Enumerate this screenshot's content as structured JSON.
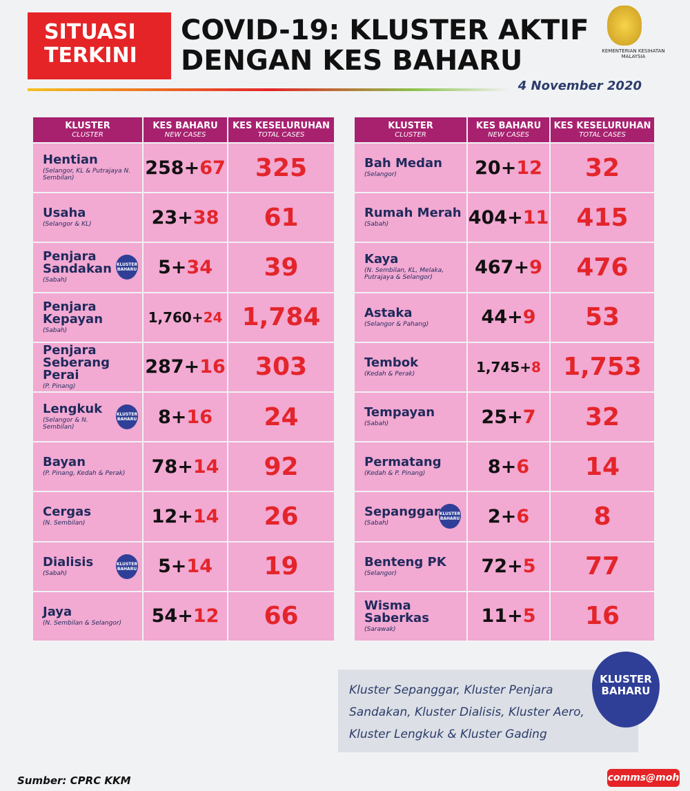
{
  "header": {
    "badge_top": "SITUASI",
    "badge_bottom": "TERKINI",
    "title_line1": "COVID-19: KLUSTER AKTIF",
    "title_line2": "DENGAN KES BAHARU",
    "ministry": "KEMENTERIAN KESIHATAN MALAYSIA",
    "date": "4 November 2020"
  },
  "columns": {
    "cluster": "KLUSTER",
    "cluster_en": "CLUSTER",
    "new": "KES BAHARU",
    "new_en": "NEW CASES",
    "total": "KES KESELURUHAN",
    "total_en": "TOTAL CASES"
  },
  "plus": "+",
  "badge_label": "KLUSTER BAHARU",
  "tables": [
    {
      "rows": [
        {
          "name": "Hentian",
          "location": "(Selangor, KL & Putrajaya N. Sembilan)",
          "existing": "258",
          "new": "67",
          "total": "325",
          "new_cluster": false
        },
        {
          "name": "Usaha",
          "location": "(Selangor & KL)",
          "existing": "23",
          "new": "38",
          "total": "61",
          "new_cluster": false
        },
        {
          "name": "Penjara Sandakan",
          "location": "(Sabah)",
          "existing": "5",
          "new": "34",
          "total": "39",
          "new_cluster": true
        },
        {
          "name": "Penjara Kepayan",
          "location": "(Sabah)",
          "existing": "1,760",
          "new": "24",
          "total": "1,784",
          "new_cluster": false
        },
        {
          "name": "Penjara Seberang Perai",
          "location": "(P. Pinang)",
          "existing": "287",
          "new": "16",
          "total": "303",
          "new_cluster": false
        },
        {
          "name": "Lengkuk",
          "location": "(Selangor & N. Sembilan)",
          "existing": "8",
          "new": "16",
          "total": "24",
          "new_cluster": true
        },
        {
          "name": "Bayan",
          "location": "(P. Pinang, Kedah & Perak)",
          "existing": "78",
          "new": "14",
          "total": "92",
          "new_cluster": false
        },
        {
          "name": "Cergas",
          "location": "(N. Sembilan)",
          "existing": "12",
          "new": "14",
          "total": "26",
          "new_cluster": false
        },
        {
          "name": "Dialisis",
          "location": "(Sabah)",
          "existing": "5",
          "new": "14",
          "total": "19",
          "new_cluster": true
        },
        {
          "name": "Jaya",
          "location": "(N. Sembilan & Selangor)",
          "existing": "54",
          "new": "12",
          "total": "66",
          "new_cluster": false
        }
      ]
    },
    {
      "rows": [
        {
          "name": "Bah Medan",
          "location": "(Selangor)",
          "existing": "20",
          "new": "12",
          "total": "32",
          "new_cluster": false
        },
        {
          "name": "Rumah Merah",
          "location": "(Sabah)",
          "existing": "404",
          "new": "11",
          "total": "415",
          "new_cluster": false
        },
        {
          "name": "Kaya",
          "location": "(N. Sembilan, KL, Melaka, Putrajaya & Selangor)",
          "existing": "467",
          "new": "9",
          "total": "476",
          "new_cluster": false
        },
        {
          "name": "Astaka",
          "location": "(Selangor & Pahang)",
          "existing": "44",
          "new": "9",
          "total": "53",
          "new_cluster": false
        },
        {
          "name": "Tembok",
          "location": "(Kedah & Perak)",
          "existing": "1,745",
          "new": "8",
          "total": "1,753",
          "new_cluster": false
        },
        {
          "name": "Tempayan",
          "location": "(Sabah)",
          "existing": "25",
          "new": "7",
          "total": "32",
          "new_cluster": false
        },
        {
          "name": "Permatang",
          "location": "(Kedah & P. Pinang)",
          "existing": "8",
          "new": "6",
          "total": "14",
          "new_cluster": false
        },
        {
          "name": "Sepanggar",
          "location": "(Sabah)",
          "existing": "2",
          "new": "6",
          "total": "8",
          "new_cluster": true
        },
        {
          "name": "Benteng PK",
          "location": "(Selangor)",
          "existing": "72",
          "new": "5",
          "total": "77",
          "new_cluster": false
        },
        {
          "name": "Wisma Saberkas",
          "location": "(Sarawak)",
          "existing": "11",
          "new": "5",
          "total": "16",
          "new_cluster": false
        }
      ]
    }
  ],
  "note": "Kluster Sepanggar, Kluster Penjara Sandakan, Kluster Dialisis, Kluster Aero, Kluster Lengkuk & Kluster Gading",
  "footer": {
    "source": "Sumber: CPRC KKM",
    "brand": "comms@moh"
  }
}
